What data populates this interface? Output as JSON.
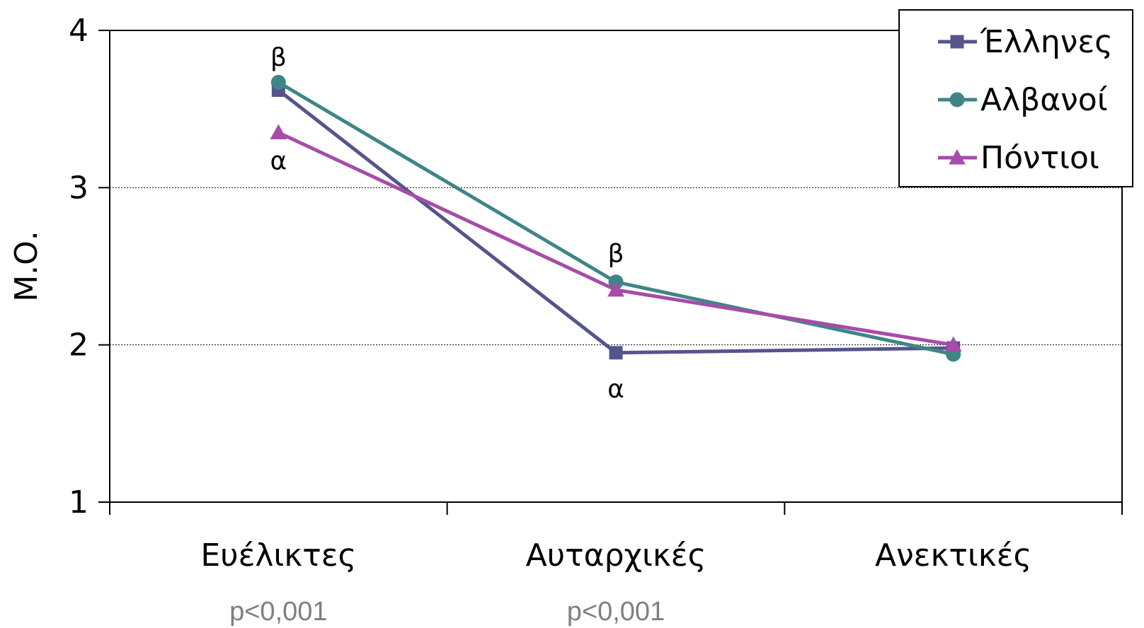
{
  "chart_data": {
    "type": "line",
    "title": "",
    "xlabel": "",
    "ylabel": "Μ.Ο.",
    "ylim": [
      1,
      4
    ],
    "yticks": [
      1,
      2,
      3,
      4
    ],
    "grid": "horizontal dotted at 2 and 3",
    "legend_position": "top-right",
    "categories": [
      "Ευέλικτες",
      "Αυταρχικές",
      "Ανεκτικές"
    ],
    "series": [
      {
        "name": "Έλληνες",
        "values": [
          3.62,
          1.95,
          1.98
        ],
        "color": "#56548c",
        "marker": "square"
      },
      {
        "name": "Αλβανοί",
        "values": [
          3.67,
          2.4,
          1.94
        ],
        "color": "#3f8587",
        "marker": "circle"
      },
      {
        "name": "Πόντιοι",
        "values": [
          3.35,
          2.35,
          2.0
        ],
        "color": "#a64ca9",
        "marker": "triangle"
      }
    ],
    "annotations": [
      {
        "text": "β",
        "category": 0,
        "y": 3.83
      },
      {
        "text": "α",
        "category": 0,
        "y": 3.17
      },
      {
        "text": "β",
        "category": 1,
        "y": 2.58
      },
      {
        "text": "α",
        "category": 1,
        "y": 1.72
      }
    ],
    "p_values": [
      {
        "text": "p<0,001",
        "category": 0
      },
      {
        "text": "p<0,001",
        "category": 1
      }
    ]
  }
}
